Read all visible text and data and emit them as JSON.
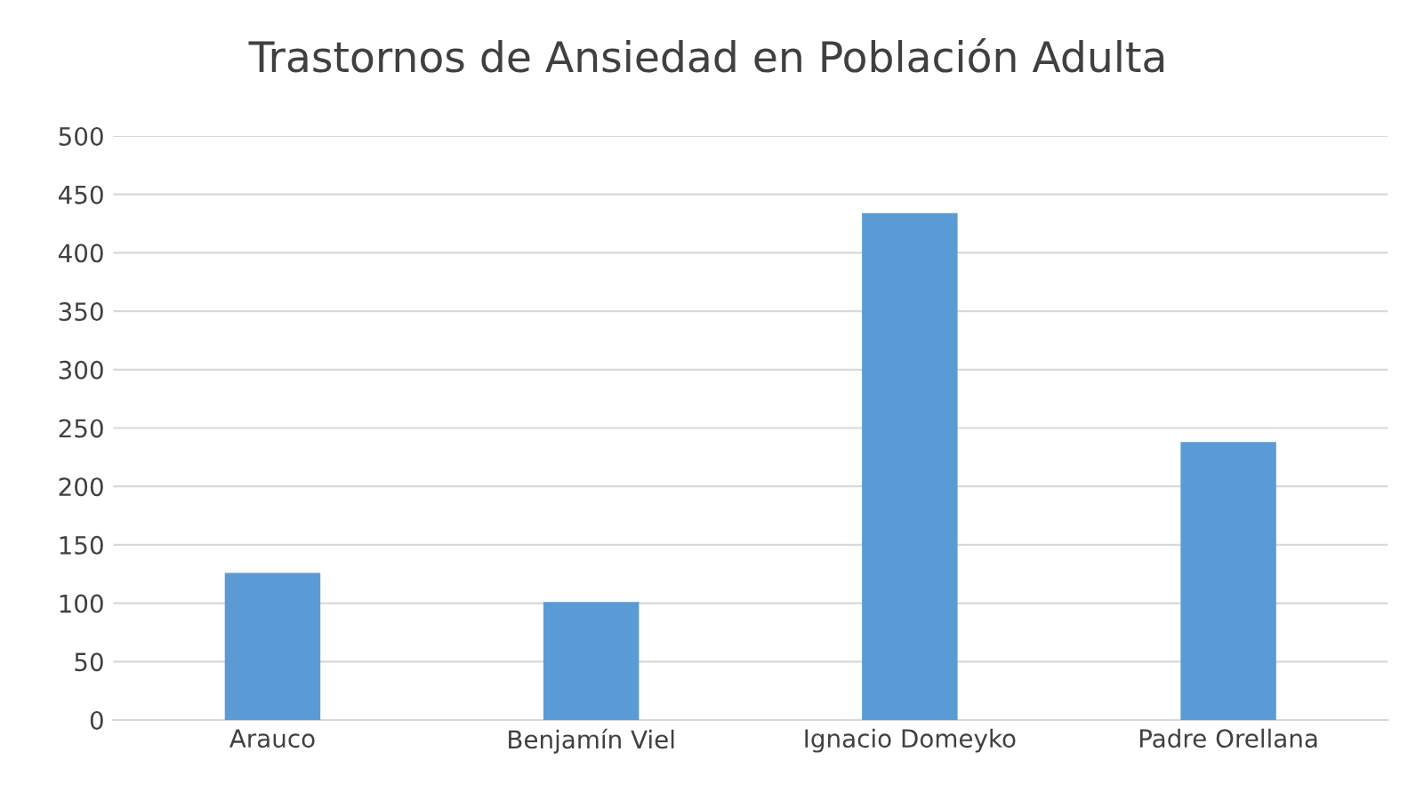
{
  "chart_data": {
    "type": "bar",
    "title": "Trastornos de Ansiedad en Población Adulta",
    "categories": [
      "Arauco",
      "Benjamín Viel",
      "Ignacio Domeyko",
      "Padre Orellana"
    ],
    "values": [
      126,
      101,
      434,
      238
    ],
    "color": "#5b9bd5",
    "ylim": [
      0,
      500
    ],
    "yticks": [
      0,
      50,
      100,
      150,
      200,
      250,
      300,
      350,
      400,
      450,
      500
    ],
    "grid": "y"
  }
}
